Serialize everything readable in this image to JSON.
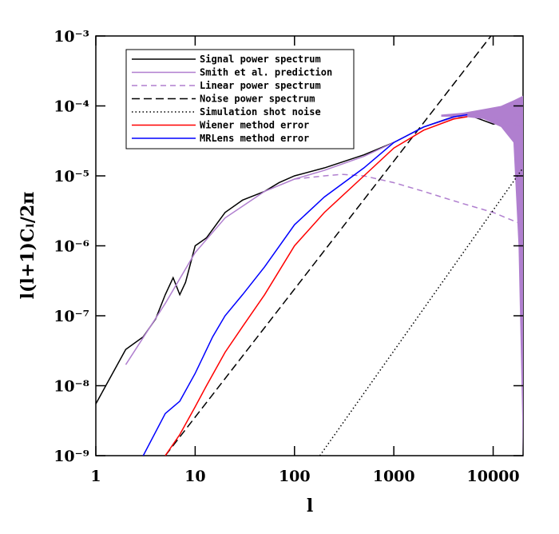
{
  "chart_data": {
    "type": "line",
    "xlabel": "l",
    "ylabel": "l(l+1)Cₗ/2π",
    "xscale": "log",
    "yscale": "log",
    "xlim": [
      1,
      20000
    ],
    "ylim": [
      1e-09,
      0.001
    ],
    "xticks": [
      1,
      10,
      100,
      1000,
      10000
    ],
    "yticks": [
      {
        "value": 1e-09,
        "label": "10⁻⁹"
      },
      {
        "value": 1e-08,
        "label": "10⁻⁸"
      },
      {
        "value": 1e-07,
        "label": "10⁻⁷"
      },
      {
        "value": 1e-06,
        "label": "10⁻⁶"
      },
      {
        "value": 1e-05,
        "label": "10⁻⁵"
      },
      {
        "value": 0.0001,
        "label": "10⁻⁴"
      },
      {
        "value": 0.001,
        "label": "10⁻³"
      }
    ],
    "legend": "upper-left",
    "series": [
      {
        "name": "Signal power spectrum",
        "color": "#000000",
        "linestyle": "solid",
        "x": [
          1,
          2,
          3,
          4,
          5,
          6,
          7,
          8,
          10,
          13,
          20,
          30,
          50,
          70,
          100,
          200,
          500,
          1000,
          2000,
          4000,
          6000,
          10000,
          12000
        ],
        "values": [
          5.5e-09,
          3.3e-08,
          5e-08,
          9e-08,
          2e-07,
          3.5e-07,
          2e-07,
          3e-07,
          1e-06,
          1.3e-06,
          3e-06,
          4.5e-06,
          6e-06,
          8e-06,
          1e-05,
          1.3e-05,
          2e-05,
          3e-05,
          5e-05,
          7e-05,
          7.2e-05,
          5.5e-05,
          5.7e-05
        ]
      },
      {
        "name": "Smith et al. prediction",
        "color": "#b07fcf",
        "linestyle": "solid",
        "x": [
          2,
          5,
          10,
          20,
          50,
          100,
          200,
          500,
          1000,
          2000,
          5000,
          10000,
          20000
        ],
        "values": [
          2e-08,
          1.5e-07,
          8e-07,
          2.5e-06,
          6e-06,
          9e-06,
          1.2e-05,
          1.9e-05,
          3e-05,
          5e-05,
          7.5e-05,
          6.8e-05,
          5e-05
        ],
        "band": {
          "x": [
            3000,
            5000,
            8000,
            12000,
            16000,
            18000,
            20000
          ],
          "upper": [
            7.5e-05,
            8e-05,
            9e-05,
            0.0001,
            0.00012,
            0.00013,
            0.00014
          ],
          "lower": [
            7e-05,
            7e-05,
            6.5e-05,
            5e-05,
            3e-05,
            1e-06,
            1e-09
          ]
        }
      },
      {
        "name": "Linear power spectrum",
        "color": "#b07fcf",
        "linestyle": "dashed",
        "x": [
          100,
          200,
          300,
          500,
          1000,
          2000,
          3000,
          5000,
          10000,
          20000
        ],
        "values": [
          9e-06,
          1e-05,
          1.05e-05,
          1e-05,
          8e-06,
          6e-06,
          5e-06,
          4e-06,
          3e-06,
          2e-06
        ]
      },
      {
        "name": "Noise power spectrum",
        "color": "#000000",
        "linestyle": "longdash",
        "x": [
          5,
          9500
        ],
        "values": [
          1e-09,
          0.001
        ]
      },
      {
        "name": "Simulation shot noise",
        "color": "#000000",
        "linestyle": "dotted",
        "x": [
          180,
          20000
        ],
        "values": [
          1e-09,
          1.3e-05
        ]
      },
      {
        "name": "Wiener method error",
        "color": "#ff0000",
        "linestyle": "solid",
        "x": [
          5,
          7,
          10,
          13,
          20,
          30,
          50,
          100,
          200,
          500,
          1000,
          2000,
          4000,
          5500
        ],
        "values": [
          1e-09,
          2e-09,
          5e-09,
          1e-08,
          3e-08,
          7e-08,
          2e-07,
          1e-06,
          3e-06,
          1e-05,
          2.5e-05,
          4.5e-05,
          6.5e-05,
          7e-05
        ]
      },
      {
        "name": "MRLens method error",
        "color": "#0000ff",
        "linestyle": "solid",
        "x": [
          3,
          5,
          7,
          10,
          15,
          20,
          30,
          50,
          100,
          200,
          500,
          1000,
          2000,
          4000,
          5500
        ],
        "values": [
          1e-09,
          4e-09,
          6e-09,
          1.5e-08,
          5e-08,
          1e-07,
          2e-07,
          5e-07,
          2e-06,
          5e-06,
          1.3e-05,
          3e-05,
          5e-05,
          7e-05,
          7.5e-05
        ]
      }
    ]
  }
}
